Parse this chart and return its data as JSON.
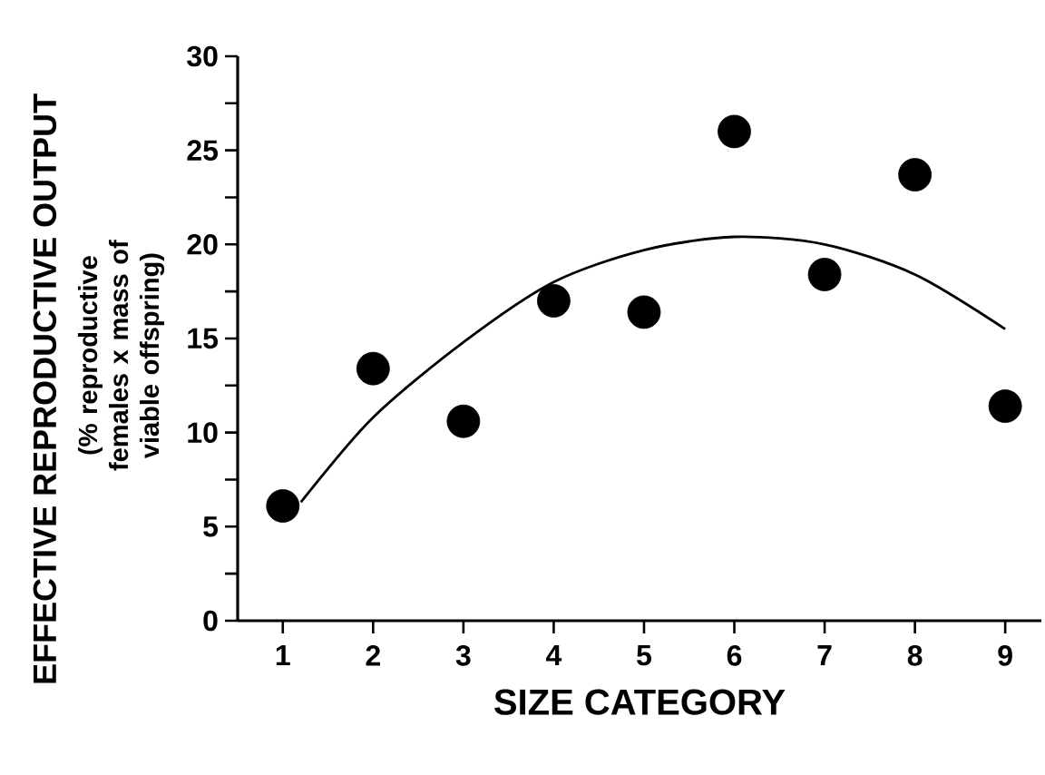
{
  "chart_data": {
    "type": "scatter",
    "xlabel": "SIZE CATEGORY",
    "ylabel": "EFFECTIVE REPRODUCTIVE OUTPUT",
    "annotations": [
      "(% reproductive females x mass of viable offspring)"
    ],
    "xlim": [
      0.5,
      9.4
    ],
    "ylim": [
      0,
      30
    ],
    "xticks": [
      1,
      2,
      3,
      4,
      5,
      6,
      7,
      8,
      9
    ],
    "yticks": [
      0,
      {
        "value": 2.5,
        "label": null
      },
      5,
      {
        "value": 7.5,
        "label": null
      },
      10,
      {
        "value": 12.5,
        "label": null
      },
      15,
      {
        "value": 17.5,
        "label": null
      },
      20,
      {
        "value": 22.5,
        "label": null
      },
      25,
      {
        "value": 27.5,
        "label": null
      },
      30
    ],
    "series": [
      {
        "color": "#000000",
        "marker": "circle",
        "x": [
          1,
          2,
          3,
          4,
          5,
          6,
          7,
          8,
          9
        ],
        "values": [
          6.1,
          13.4,
          10.6,
          17.0,
          16.4,
          26.0,
          18.4,
          23.7,
          11.4
        ]
      },
      {
        "type": "line",
        "color": "#000000",
        "marker": "none",
        "line_style": "solid",
        "x": [
          1.2,
          2,
          3,
          4,
          5,
          6,
          7,
          8,
          9
        ],
        "values": [
          6.3,
          10.8,
          14.8,
          18.0,
          19.7,
          20.4,
          20.0,
          18.4,
          15.5
        ]
      }
    ]
  }
}
